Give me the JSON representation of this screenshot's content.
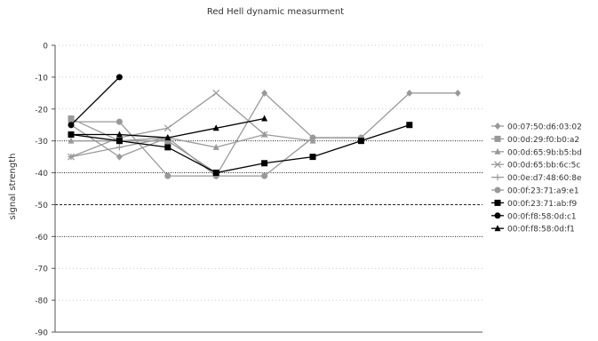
{
  "chart_data": {
    "type": "line",
    "title": "Red Hell dynamic measurment",
    "xlabel": "",
    "ylabel": "signal strength",
    "ylim": [
      -90,
      0
    ],
    "yticks": [
      0,
      -10,
      -20,
      -30,
      -40,
      -50,
      -60,
      -70,
      -80,
      -90
    ],
    "x_count": 9,
    "grid": "horizontal dotted; -30, -40 and -60 dense dots, -50 short dashes",
    "legend_position": "right",
    "series": [
      {
        "name": "00:07:50:d6:03:02",
        "marker": "diamond",
        "color": "#999999",
        "values": [
          -25,
          -35,
          -29,
          -41,
          -15,
          -29,
          -29,
          -15,
          -15
        ]
      },
      {
        "name": "00:0d:29:f0:b0:a2",
        "marker": "square",
        "color": "#999999",
        "values": [
          -23,
          -30,
          -30,
          -40,
          null,
          null,
          null,
          null,
          null
        ]
      },
      {
        "name": "00:0d:65:9b:b5:bd",
        "marker": "triangle",
        "color": "#999999",
        "values": [
          -30,
          -30,
          -29,
          -32,
          -28,
          -30,
          null,
          null,
          null
        ]
      },
      {
        "name": "00:0d:65:bb:6c:5c",
        "marker": "x",
        "color": "#999999",
        "values": [
          -35,
          -29,
          -26,
          -15,
          -28,
          null,
          null,
          null,
          null
        ]
      },
      {
        "name": "00:0e:d7:48:60:8e",
        "marker": "plus",
        "color": "#999999",
        "values": [
          -35,
          -32,
          -29,
          null,
          null,
          null,
          null,
          null,
          null
        ]
      },
      {
        "name": "00:0f:23:71:a9:e1",
        "marker": "circle",
        "color": "#999999",
        "values": [
          -24,
          -24,
          -41,
          -41,
          -41,
          -29,
          -29,
          null,
          null
        ]
      },
      {
        "name": "00:0f:23:71:ab:f9",
        "marker": "square",
        "color": "#000000",
        "values": [
          -28,
          -30,
          -32,
          -40,
          -37,
          -35,
          -30,
          -25,
          null
        ]
      },
      {
        "name": "00:0f:f8:58:0d:c1",
        "marker": "circle",
        "color": "#000000",
        "values": [
          -25,
          -10,
          null,
          null,
          null,
          null,
          null,
          null,
          null
        ]
      },
      {
        "name": "00:0f:f8:58:0d:f1",
        "marker": "triangle",
        "color": "#000000",
        "values": [
          -28,
          -28,
          -29,
          -26,
          -23,
          null,
          null,
          null,
          null
        ]
      }
    ]
  }
}
